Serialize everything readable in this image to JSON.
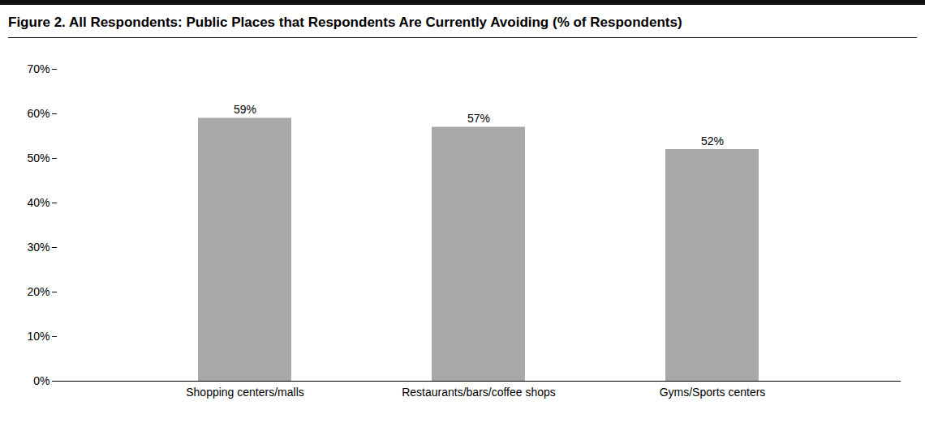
{
  "chart_data": {
    "type": "bar",
    "title": "Figure 2. All Respondents: Public Places that Respondents Are Currently Avoiding (% of Respondents)",
    "categories": [
      "Shopping centers/malls",
      "Restaurants/bars/coffee shops",
      "Gyms/Sports centers"
    ],
    "values": [
      0.59,
      0.57,
      0.52
    ],
    "value_labels": [
      "59%",
      "57%",
      "52%"
    ],
    "data_labels": true,
    "color": "#a8a8a8",
    "ylim": [
      0,
      0.7
    ],
    "yticks": [
      {
        "value": 0,
        "label": "0%"
      },
      {
        "value": 0.1,
        "label": "10%"
      },
      {
        "value": 0.2,
        "label": "20%"
      },
      {
        "value": 0.3,
        "label": "30%"
      },
      {
        "value": 0.4,
        "label": "40%"
      },
      {
        "value": 0.5,
        "label": "50%"
      },
      {
        "value": 0.6,
        "label": "60%"
      },
      {
        "value": 0.7,
        "label": "70%"
      }
    ],
    "grid": false
  }
}
